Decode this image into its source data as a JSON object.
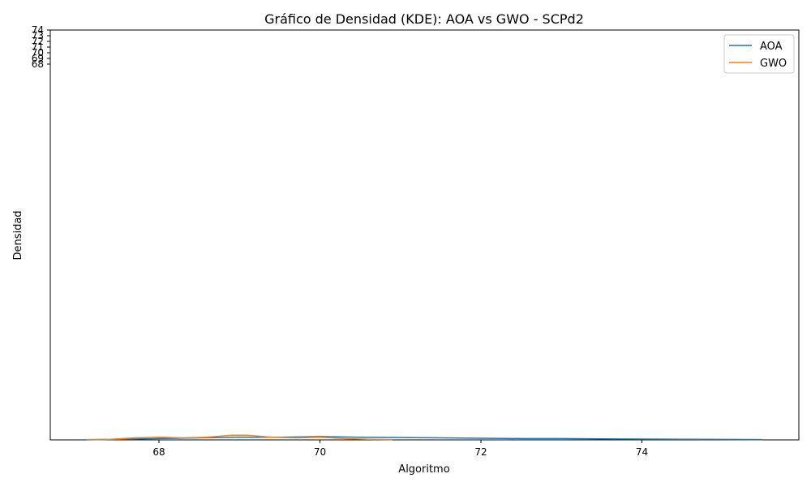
{
  "chart_data": {
    "type": "line",
    "title": "Gráfico de Densidad (KDE): AOA vs GWO - SCPd2",
    "xlabel": "Algoritmo",
    "ylabel": "Densidad",
    "xlim": [
      66.65,
      75.95
    ],
    "ylim": [
      0,
      0.62
    ],
    "x_ticks": [
      68,
      70,
      72,
      74
    ],
    "y_ticks": [
      68,
      69,
      70,
      71,
      72,
      73,
      74
    ],
    "legend_position": "top-right",
    "grid": false,
    "series": [
      {
        "name": "AOA",
        "color": "#1f77b4",
        "x": [
          67.1,
          67.5,
          68.0,
          68.5,
          69.0,
          69.5,
          70.0,
          70.5,
          71.0,
          71.5,
          72.0,
          72.5,
          73.0,
          73.5,
          74.0,
          74.5,
          75.0,
          75.5
        ],
        "y": [
          0.0,
          0.001,
          0.002,
          0.003,
          0.004,
          0.004,
          0.005,
          0.004,
          0.0035,
          0.003,
          0.0025,
          0.002,
          0.002,
          0.0015,
          0.0012,
          0.001,
          0.0008,
          0.0005
        ]
      },
      {
        "name": "GWO",
        "color": "#ff7f0e",
        "x": [
          67.1,
          67.4,
          67.7,
          68.0,
          68.3,
          68.6,
          68.9,
          69.1,
          69.4,
          69.7,
          70.0,
          70.3,
          70.6,
          70.9
        ],
        "y": [
          0.0005,
          0.001,
          0.003,
          0.004,
          0.003,
          0.004,
          0.007,
          0.007,
          0.004,
          0.003,
          0.004,
          0.002,
          0.001,
          0.0005
        ]
      }
    ]
  }
}
